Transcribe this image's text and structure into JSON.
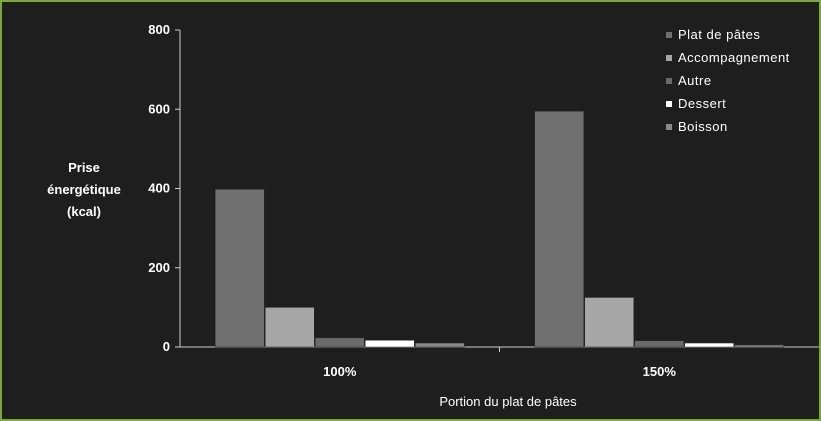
{
  "chart_data": {
    "type": "bar",
    "title": "",
    "xlabel": "Portion du plat de pâtes",
    "ylabel_lines": [
      "Prise",
      "énergétique",
      "(kcal)"
    ],
    "ylim": [
      0,
      800
    ],
    "yticks": [
      "0",
      "200",
      "400",
      "600",
      "800"
    ],
    "categories": [
      "100%",
      "150%"
    ],
    "series": [
      {
        "name": "Plat de pâtes",
        "color": "#707070",
        "values": [
          398,
          595
        ]
      },
      {
        "name": "Accompagnement",
        "color": "#a6a6a6",
        "values": [
          100,
          125
        ]
      },
      {
        "name": "Autre",
        "color": "#6a6a6a",
        "values": [
          23,
          16
        ]
      },
      {
        "name": "Dessert",
        "color": "#ffffff",
        "values": [
          17,
          10
        ]
      },
      {
        "name": "Boisson",
        "color": "#8a8a8a",
        "values": [
          10,
          5
        ]
      }
    ],
    "legend_position": "top-right",
    "grid": false
  }
}
